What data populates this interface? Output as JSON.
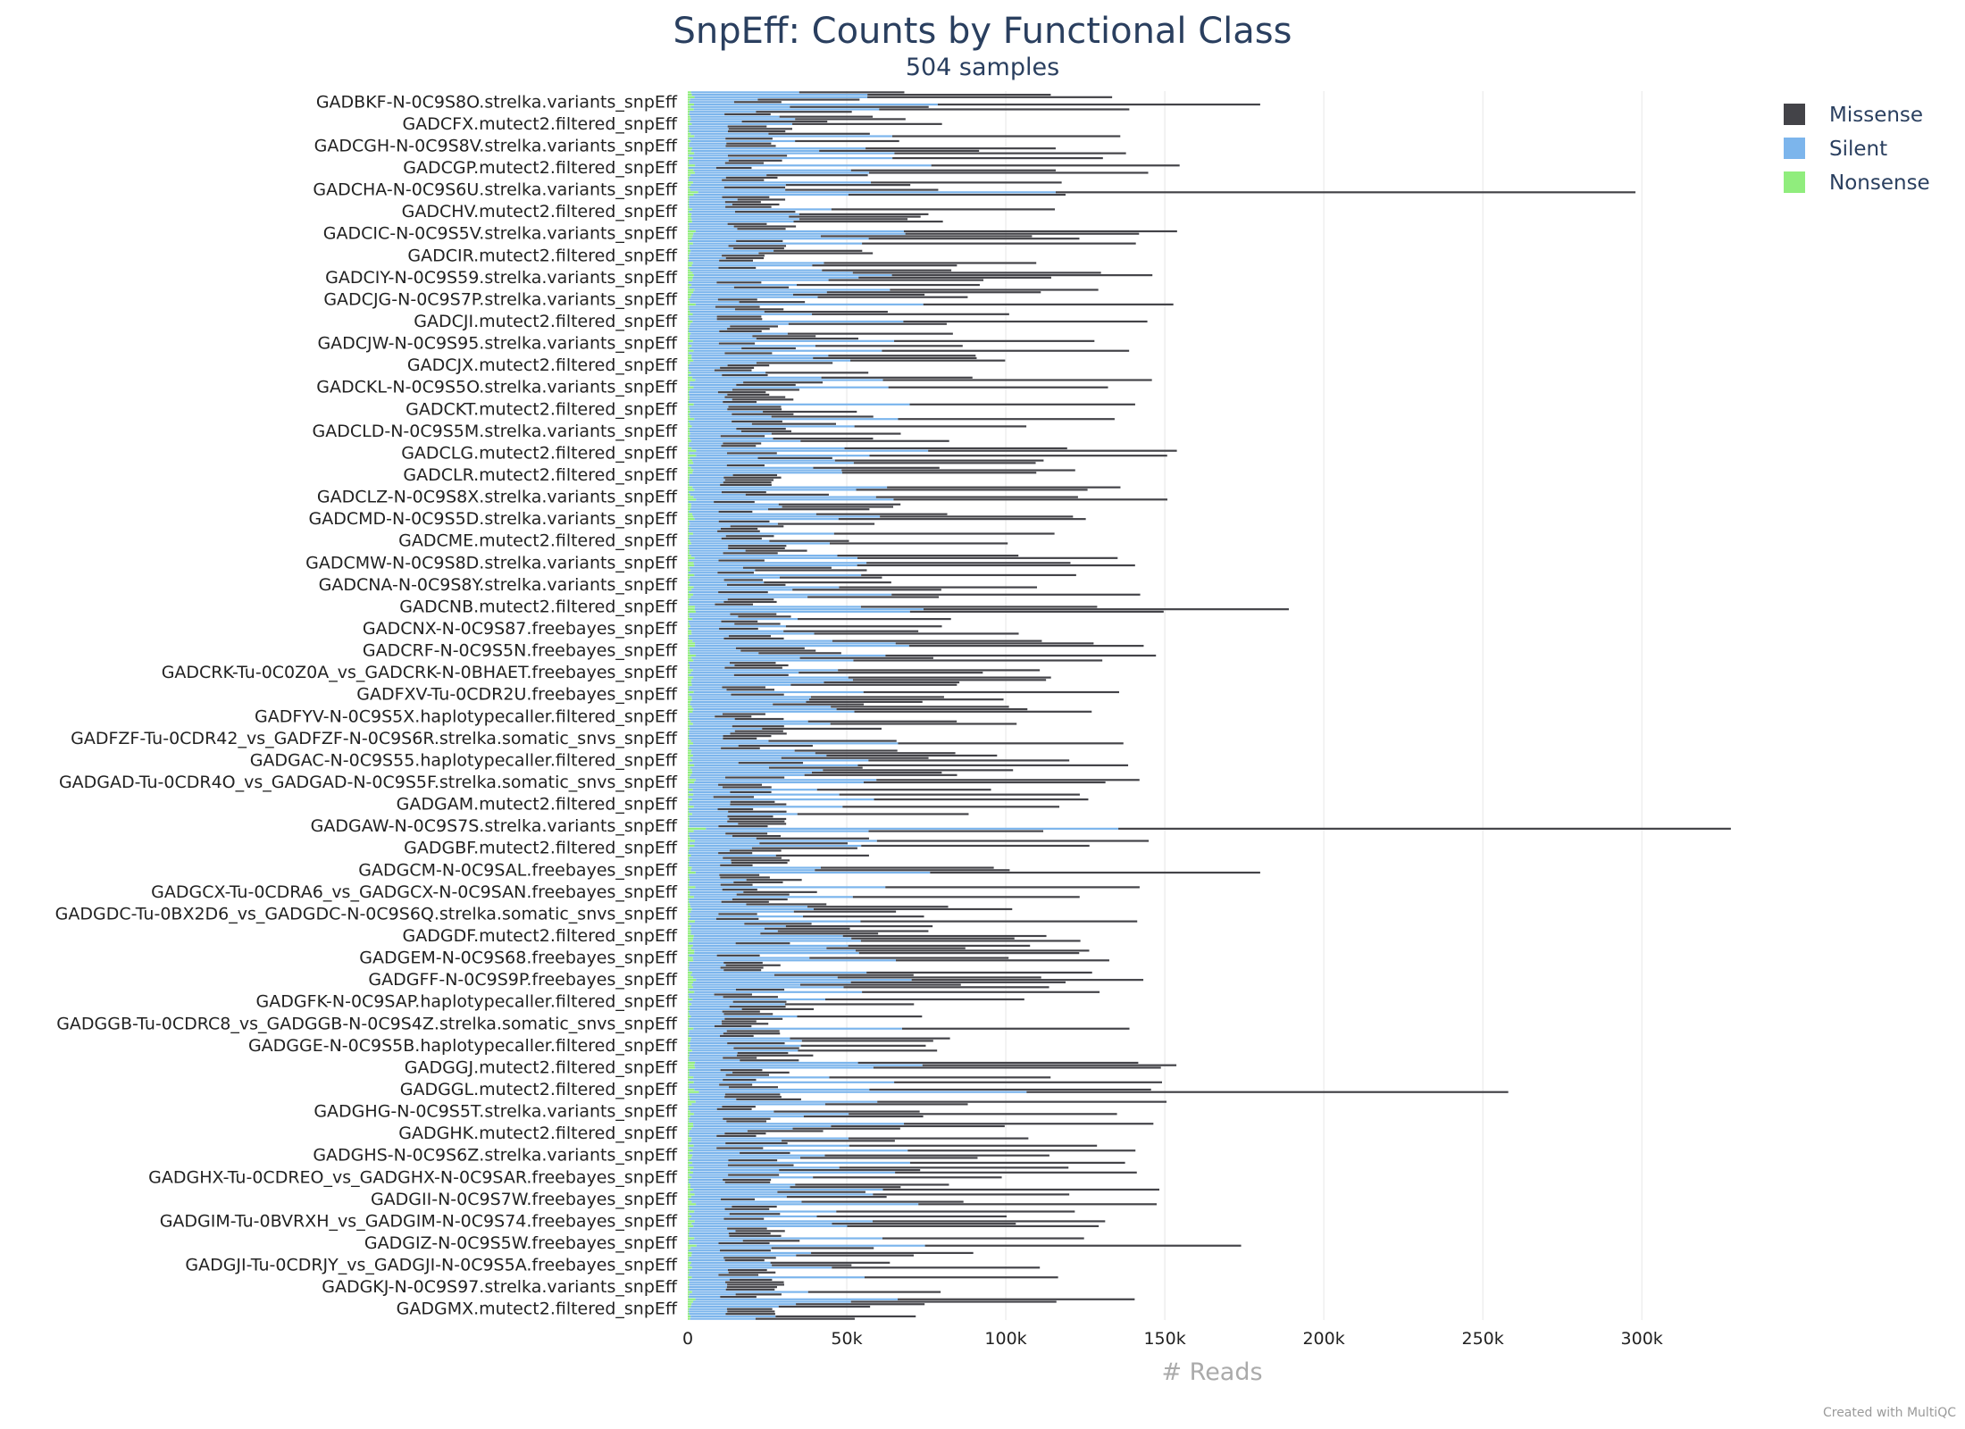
{
  "chart_data": {
    "type": "bar",
    "orientation": "horizontal",
    "stacked": true,
    "title": "SnpEff: Counts by Functional Class",
    "subtitle": "504 samples",
    "xlabel": "# Reads",
    "xlim": [
      0,
      330000
    ],
    "x_ticks": [
      {
        "value": 0,
        "label": "0"
      },
      {
        "value": 50000,
        "label": "50k"
      },
      {
        "value": 100000,
        "label": "100k"
      },
      {
        "value": 150000,
        "label": "150k"
      },
      {
        "value": 200000,
        "label": "200k"
      },
      {
        "value": 250000,
        "label": "250k"
      },
      {
        "value": 300000,
        "label": "300k"
      }
    ],
    "grid": "vertical",
    "legend_position": "top-right",
    "series_colors": {
      "Missense": "#434348",
      "Silent": "#7cb5ec",
      "Nonsense": "#90ed7d"
    },
    "legend": [
      "Missense",
      "Silent",
      "Nonsense"
    ],
    "sample_count": 504,
    "labels": [
      "GADBKF-N-0C9S8O.strelka.variants_snpEff",
      "GADCFX.mutect2.filtered_snpEff",
      "GADCGH-N-0C9S8V.strelka.variants_snpEff",
      "GADCGP.mutect2.filtered_snpEff",
      "GADCHA-N-0C9S6U.strelka.variants_snpEff",
      "GADCHV.mutect2.filtered_snpEff",
      "GADCIC-N-0C9S5V.strelka.variants_snpEff",
      "GADCIR.mutect2.filtered_snpEff",
      "GADCIY-N-0C9S59.strelka.variants_snpEff",
      "GADCJG-N-0C9S7P.strelka.variants_snpEff",
      "GADCJI.mutect2.filtered_snpEff",
      "GADCJW-N-0C9S95.strelka.variants_snpEff",
      "GADCJX.mutect2.filtered_snpEff",
      "GADCKL-N-0C9S5O.strelka.variants_snpEff",
      "GADCKT.mutect2.filtered_snpEff",
      "GADCLD-N-0C9S5M.strelka.variants_snpEff",
      "GADCLG.mutect2.filtered_snpEff",
      "GADCLR.mutect2.filtered_snpEff",
      "GADCLZ-N-0C9S8X.strelka.variants_snpEff",
      "GADCMD-N-0C9S5D.strelka.variants_snpEff",
      "GADCME.mutect2.filtered_snpEff",
      "GADCMW-N-0C9S8D.strelka.variants_snpEff",
      "GADCNA-N-0C9S8Y.strelka.variants_snpEff",
      "GADCNB.mutect2.filtered_snpEff",
      "GADCNX-N-0C9S87.freebayes_snpEff",
      "GADCRF-N-0C9S5N.freebayes_snpEff",
      "GADCRK-Tu-0C0Z0A_vs_GADCRK-N-0BHAET.freebayes_snpEff",
      "GADFXV-Tu-0CDR2U.freebayes_snpEff",
      "GADFYV-N-0C9S5X.haplotypecaller.filtered_snpEff",
      "GADFZF-Tu-0CDR42_vs_GADFZF-N-0C9S6R.strelka.somatic_snvs_snpEff",
      "GADGAC-N-0C9S55.haplotypecaller.filtered_snpEff",
      "GADGAD-Tu-0CDR4O_vs_GADGAD-N-0C9S5F.strelka.somatic_snvs_snpEff",
      "GADGAM.mutect2.filtered_snpEff",
      "GADGAW-N-0C9S7S.strelka.variants_snpEff",
      "GADGBF.mutect2.filtered_snpEff",
      "GADGCM-N-0C9SAL.freebayes_snpEff",
      "GADGCX-Tu-0CDRA6_vs_GADGCX-N-0C9SAN.freebayes_snpEff",
      "GADGDC-Tu-0BX2D6_vs_GADGDC-N-0C9S6Q.strelka.somatic_snvs_snpEff",
      "GADGDF.mutect2.filtered_snpEff",
      "GADGEM-N-0C9S68.freebayes_snpEff",
      "GADGFF-N-0C9S9P.freebayes_snpEff",
      "GADGFK-N-0C9SAP.haplotypecaller.filtered_snpEff",
      "GADGGB-Tu-0CDRC8_vs_GADGGB-N-0C9S4Z.strelka.somatic_snvs_snpEff",
      "GADGGE-N-0C9S5B.haplotypecaller.filtered_snpEff",
      "GADGGJ.mutect2.filtered_snpEff",
      "GADGGL.mutect2.filtered_snpEff",
      "GADGHG-N-0C9S5T.strelka.variants_snpEff",
      "GADGHK.mutect2.filtered_snpEff",
      "GADGHS-N-0C9S6Z.strelka.variants_snpEff",
      "GADGHX-Tu-0CDREO_vs_GADGHX-N-0C9SAR.freebayes_snpEff",
      "GADGII-N-0C9S7W.freebayes_snpEff",
      "GADGIM-Tu-0BVRXH_vs_GADGIM-N-0C9S74.freebayes_snpEff",
      "GADGIZ-N-0C9S5W.freebayes_snpEff",
      "GADGJI-Tu-0CDRJY_vs_GADGJI-N-0C9S5A.freebayes_snpEff",
      "GADGKJ-N-0C9S97.strelka.variants_snpEff",
      "GADGMX.mutect2.filtered_snpEff"
    ],
    "featured_totals": [
      {
        "label_index": 0,
        "total": 180000
      },
      {
        "label_index": 4,
        "total": 298000
      },
      {
        "label_index": 23,
        "total": 189000
      },
      {
        "label_index": 33,
        "total": 328000
      },
      {
        "label_index": 35,
        "total": 180000
      },
      {
        "label_index": 45,
        "total": 258000
      },
      {
        "label_index": 52,
        "total": 174000
      }
    ]
  },
  "footer": {
    "credit": "Created with MultiQC"
  }
}
